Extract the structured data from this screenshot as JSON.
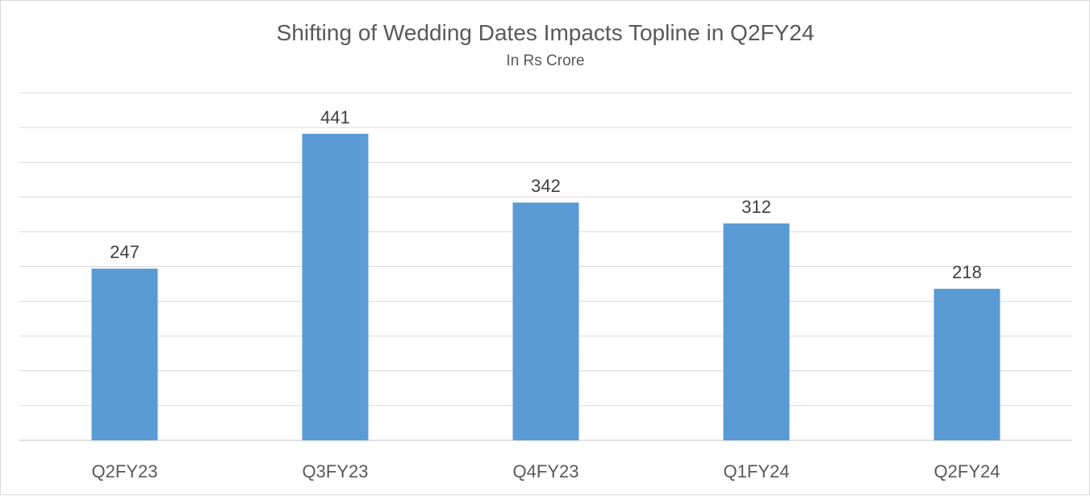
{
  "chart_data": {
    "type": "bar",
    "title": "Shifting of Wedding Dates Impacts Topline in Q2FY24",
    "subtitle": "In Rs Crore",
    "categories": [
      "Q2FY23",
      "Q3FY23",
      "Q4FY23",
      "Q1FY24",
      "Q2FY24"
    ],
    "values": [
      247,
      441,
      342,
      312,
      218
    ],
    "xlabel": "",
    "ylabel": "",
    "ylim": [
      0,
      500
    ],
    "y_axis_labels_shown": false,
    "grid": true,
    "legend": "none",
    "bar_color": "#5b9bd5",
    "grid_color": "#d9d9d9"
  }
}
